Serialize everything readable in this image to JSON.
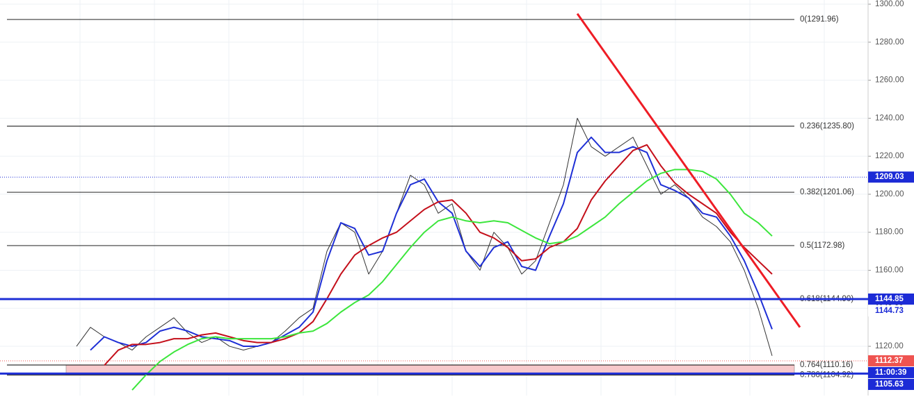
{
  "chart_data": {
    "type": "line",
    "categories": [
      null,
      null,
      null,
      null,
      null,
      null,
      null,
      null,
      null,
      null,
      null,
      null,
      null,
      null,
      null,
      null,
      null,
      null,
      null,
      null,
      null,
      null,
      null,
      null,
      null,
      null,
      null,
      null,
      null,
      null,
      null,
      null,
      null,
      null,
      null,
      null,
      null,
      null,
      null,
      null,
      null,
      null,
      null,
      null,
      null,
      null,
      null,
      null,
      null,
      null,
      null,
      null,
      null,
      null,
      null,
      null,
      null,
      null
    ],
    "ylim": [
      1094.1,
      1302.2
    ],
    "yticks": [
      {
        "value": 1120,
        "label": "1120.00"
      },
      {
        "value": 1140,
        "label": "1140.00"
      },
      {
        "value": 1160,
        "label": "1160.00"
      },
      {
        "value": 1180,
        "label": "1180.00"
      },
      {
        "value": 1200,
        "label": "1200.00"
      },
      {
        "value": 1220,
        "label": "1220.00"
      },
      {
        "value": 1240,
        "label": "1240.00"
      },
      {
        "value": 1260,
        "label": "1260.00"
      },
      {
        "value": 1280,
        "label": "1280.00"
      },
      {
        "value": 1300,
        "label": "1300.00"
      }
    ],
    "grid": true,
    "series": [
      {
        "color": "#333333",
        "width": 1,
        "values": [
          null,
          null,
          null,
          null,
          null,
          1120,
          1130,
          1125,
          1122,
          1118,
          1125,
          1130,
          1135,
          1127,
          1122,
          1125,
          1120,
          1118,
          1120,
          1122,
          1128,
          1135,
          1140,
          1170,
          1185,
          1180,
          1158,
          1170,
          1190,
          1210,
          1205,
          1190,
          1195,
          1170,
          1160,
          1180,
          1172,
          1158,
          1165,
          1185,
          1205,
          1240,
          1225,
          1220,
          1225,
          1230,
          1215,
          1200,
          1205,
          1198,
          1188,
          1183,
          1175,
          1160,
          1140,
          1115,
          null,
          null
        ]
      },
      {
        "color": "#1e2fd6",
        "width": 2,
        "values": [
          null,
          null,
          null,
          null,
          null,
          null,
          1118,
          1125,
          1122,
          1120,
          1122,
          1128,
          1130,
          1128,
          1125,
          1124,
          1123,
          1120,
          1120,
          1122,
          1126,
          1130,
          1138,
          1165,
          1185,
          1182,
          1168,
          1170,
          1190,
          1205,
          1208,
          1196,
          1190,
          1170,
          1162,
          1172,
          1175,
          1162,
          1160,
          1178,
          1195,
          1222,
          1230,
          1222,
          1222,
          1225,
          1222,
          1205,
          1202,
          1198,
          1190,
          1188,
          1178,
          1165,
          1148,
          1129,
          null,
          null
        ]
      },
      {
        "color": "#c40f1a",
        "width": 2,
        "values": [
          null,
          null,
          null,
          null,
          null,
          null,
          null,
          1110,
          1118,
          1121,
          1121,
          1122,
          1124,
          1124,
          1126,
          1127,
          1125,
          1123,
          1122,
          1122,
          1124,
          1127,
          1133,
          1145,
          1158,
          1168,
          1173,
          1177,
          1180,
          1186,
          1192,
          1196,
          1197,
          1190,
          1180,
          1177,
          1172,
          1165,
          1166,
          1172,
          1175,
          1182,
          1197,
          1207,
          1215,
          1223,
          1226,
          1215,
          1206,
          1200,
          1195,
          1190,
          1180,
          1172,
          1165,
          1158,
          null,
          null
        ]
      },
      {
        "color": "#3ce63c",
        "width": 2,
        "values": [
          null,
          null,
          null,
          null,
          null,
          null,
          null,
          null,
          null,
          1097,
          1105,
          1112,
          1117,
          1121,
          1124,
          1125,
          1124,
          1124,
          1124,
          1124,
          1125,
          1127,
          1128,
          1132,
          1138,
          1143,
          1147,
          1154,
          1163,
          1172,
          1180,
          1186,
          1188,
          1186,
          1185,
          1186,
          1185,
          1181,
          1177,
          1174,
          1175,
          1178,
          1183,
          1188,
          1195,
          1201,
          1207,
          1211,
          1213,
          1213,
          1212,
          1208,
          1200,
          1190,
          1185,
          1178,
          null,
          null
        ]
      },
      {
        "color": "#ee1c25",
        "width": 3,
        "values": [
          null,
          null,
          null,
          null,
          null,
          null,
          null,
          null,
          null,
          null,
          null,
          null,
          null,
          null,
          null,
          null,
          null,
          null,
          null,
          null,
          null,
          null,
          null,
          null,
          null,
          null,
          null,
          null,
          null,
          null,
          null,
          null,
          null,
          null,
          null,
          null,
          null,
          null,
          null,
          null,
          null,
          1295,
          null,
          null,
          null,
          null,
          null,
          null,
          null,
          null,
          null,
          null,
          null,
          null,
          null,
          null,
          null,
          1130
        ]
      }
    ],
    "fib_levels": [
      {
        "label": "0(1291.96)",
        "value": 1291.96
      },
      {
        "label": "0.236(1235.80)",
        "value": 1235.8
      },
      {
        "label": "0.382(1201.06)",
        "value": 1201.06
      },
      {
        "label": "0.5(1172.98)",
        "value": 1172.98
      },
      {
        "label": "0.618(1144.90)",
        "value": 1144.9
      },
      {
        "label": "0.764(1110.16)",
        "value": 1110.16
      },
      {
        "label": "0.786(1104.92)",
        "value": 1104.92
      }
    ],
    "hlines": [
      {
        "value": 1144.85,
        "color": "#1e2fd6"
      },
      {
        "value": 1105.63,
        "color": "#1e2fd6"
      }
    ],
    "price_tags": [
      {
        "label": "1209.03",
        "value": 1209.03,
        "bg": "#1c2bd6",
        "fg": "#ffffff"
      },
      {
        "label": "1144.85",
        "value": 1144.85,
        "bg": "#1c2bd6",
        "fg": "#ffffff"
      },
      {
        "label": "1144.73",
        "value": 1144.73,
        "bg": "#ffffff",
        "fg": "#1c2bd6"
      },
      {
        "label": "1112.37",
        "value": 1112.37,
        "bg": "#ef5350",
        "fg": "#ffffff"
      },
      {
        "label": "1105.63",
        "value": 1105.63,
        "bg": "#1c2bd6",
        "fg": "#ffffff"
      }
    ],
    "countdown": "11:00:39"
  }
}
